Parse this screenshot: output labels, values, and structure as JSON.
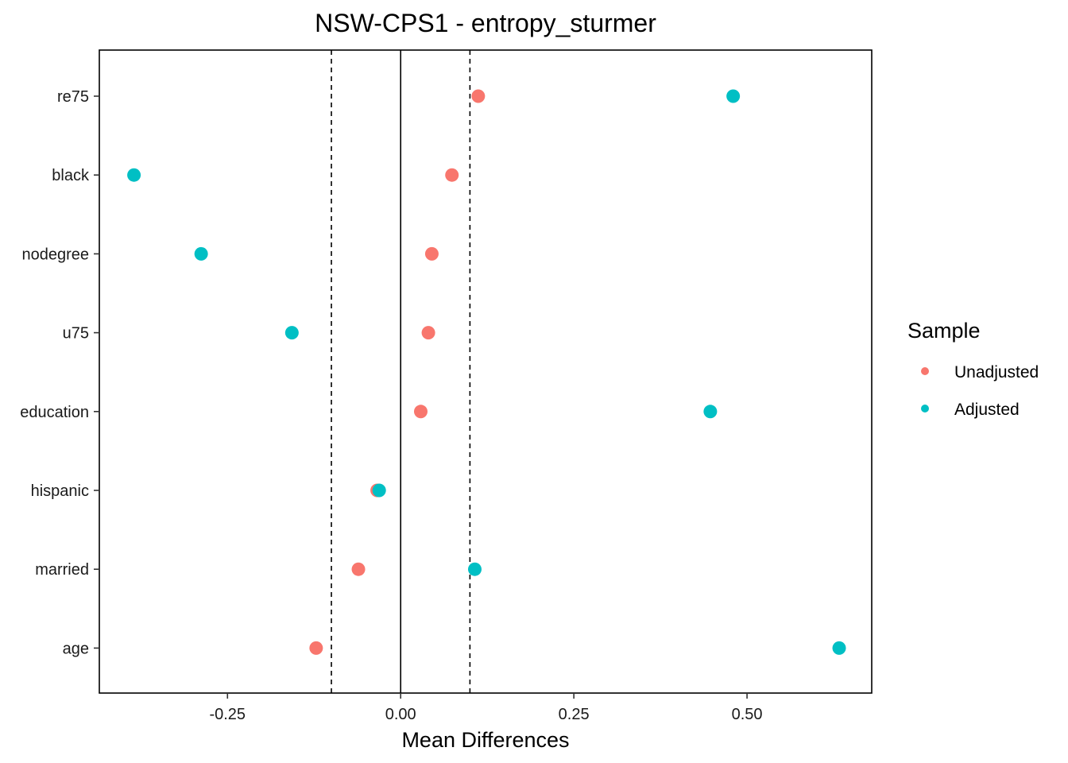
{
  "chart_data": {
    "type": "scatter",
    "title": "NSW-CPS1 - entropy_sturmer",
    "xlabel": "Mean Differences",
    "ylabel": "",
    "xlim": [
      -0.435,
      0.68
    ],
    "x_ticks": [
      -0.25,
      0.0,
      0.25,
      0.5
    ],
    "x_tick_labels": [
      "-0.25",
      "0.00",
      "0.25",
      "0.50"
    ],
    "reference_lines": {
      "solid": 0.0,
      "dashed": [
        -0.1,
        0.1
      ]
    },
    "categories": [
      "re75",
      "black",
      "nodegree",
      "u75",
      "education",
      "hispanic",
      "married",
      "age"
    ],
    "series": [
      {
        "name": "Unadjusted",
        "color": "#F8766D",
        "values": [
          0.112,
          0.074,
          0.045,
          0.04,
          0.029,
          -0.034,
          -0.061,
          -0.122
        ]
      },
      {
        "name": "Adjusted",
        "color": "#00BFC4",
        "values": [
          0.48,
          -0.385,
          -0.288,
          -0.157,
          0.447,
          -0.031,
          0.107,
          0.633
        ]
      }
    ],
    "legend": {
      "title": "Sample",
      "position": "right"
    }
  }
}
